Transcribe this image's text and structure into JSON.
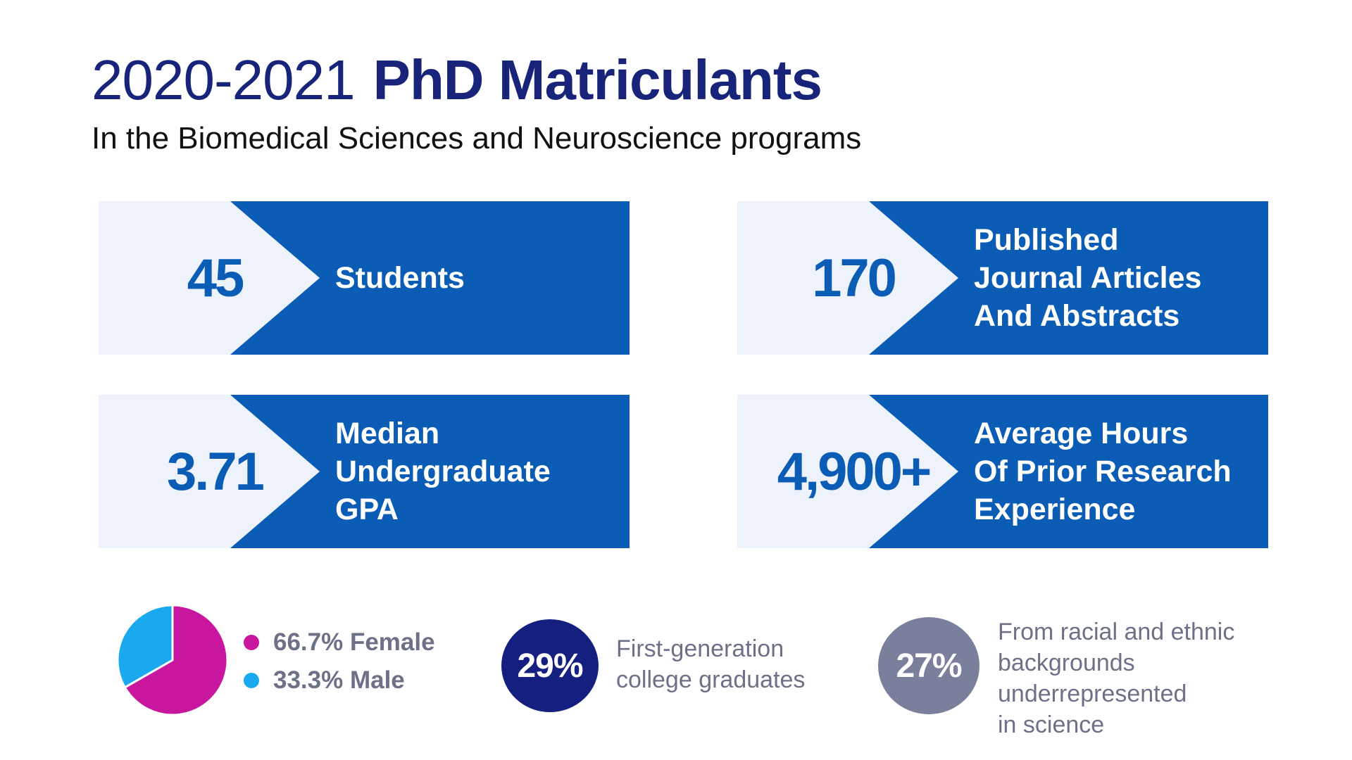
{
  "header": {
    "title_year": "2020-2021",
    "title_main": "PhD Matriculants",
    "subtitle": "In the Biomedical Sciences and Neuroscience programs"
  },
  "cards": [
    {
      "value": "45",
      "label_lines": [
        "Students"
      ]
    },
    {
      "value": "170",
      "label_lines": [
        "Published",
        "Journal Articles",
        "And Abstracts"
      ]
    },
    {
      "value": "3.71",
      "label_lines": [
        "Median",
        "Undergraduate",
        "GPA"
      ]
    },
    {
      "value": "4,900+",
      "label_lines": [
        "Average Hours",
        "Of Prior Research",
        "Experience"
      ]
    }
  ],
  "gender": {
    "female_label": "66.7% Female",
    "male_label": "33.3% Male"
  },
  "chart_data": {
    "type": "pie",
    "categories": [
      "Female",
      "Male"
    ],
    "values": [
      66.7,
      33.3
    ],
    "colors": [
      "#c8179e",
      "#1aa9ef"
    ],
    "title": ""
  },
  "first_gen": {
    "percent": "29%",
    "text_lines": [
      "First-generation",
      "college graduates"
    ]
  },
  "underrepresented": {
    "percent": "27%",
    "text_lines": [
      "From racial and ethnic",
      "backgrounds",
      "underrepresented",
      "in science"
    ]
  },
  "colors": {
    "navy": "#18247a",
    "card_blue": "#0a5cb5",
    "card_light": "#eef3fb",
    "female": "#c8179e",
    "male": "#1aa9ef",
    "circle_navy": "#141f80",
    "circle_gray": "#7a7f9b"
  }
}
